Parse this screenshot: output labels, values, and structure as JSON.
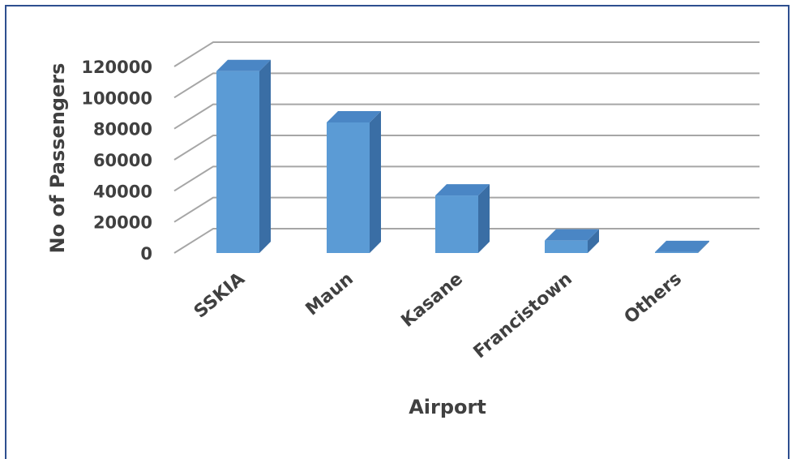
{
  "chart_data": {
    "type": "bar",
    "categories": [
      "SSKIA",
      "Maun",
      "Kasane",
      "Francistown",
      "Others"
    ],
    "values": [
      117000,
      84000,
      37000,
      8000,
      600
    ],
    "title": "",
    "xlabel": "Airport",
    "ylabel": "No of Passengers",
    "ylim": [
      0,
      120000
    ],
    "yticks": [
      0,
      20000,
      40000,
      60000,
      80000,
      100000,
      120000
    ],
    "grid": true,
    "three_d": true,
    "legend": "none",
    "colors": {
      "front": "#5b9bd5",
      "side": "#3a6ea5",
      "top": "#4a86c5",
      "grid": "#a6a6a6",
      "frame": "#2e4f8f"
    }
  }
}
